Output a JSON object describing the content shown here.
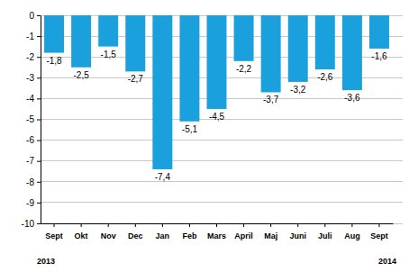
{
  "chart_data": {
    "type": "bar",
    "categories": [
      "Sept",
      "Okt",
      "Nov",
      "Dec",
      "Jan",
      "Feb",
      "Mars",
      "April",
      "Maj",
      "Juni",
      "Juli",
      "Aug",
      "Sept"
    ],
    "values": [
      -1.8,
      -2.5,
      -1.5,
      -2.7,
      -7.4,
      -5.1,
      -4.5,
      -2.2,
      -3.7,
      -3.2,
      -2.6,
      -3.6,
      -1.6
    ],
    "value_labels": [
      "-1,8",
      "-2,5",
      "-1,5",
      "-2,7",
      "-7,4",
      "-5,1",
      "-4,5",
      "-2,2",
      "-3,7",
      "-3,2",
      "-2,6",
      "-3,6",
      "-1,6"
    ],
    "data_labels": true,
    "color": "#1aa0dc",
    "ylim": [
      -10,
      0
    ],
    "yticks": [
      0,
      -1,
      -2,
      -3,
      -4,
      -5,
      -6,
      -7,
      -8,
      -9,
      -10
    ],
    "grid": true,
    "annotations": [
      "2013",
      "2014"
    ]
  }
}
